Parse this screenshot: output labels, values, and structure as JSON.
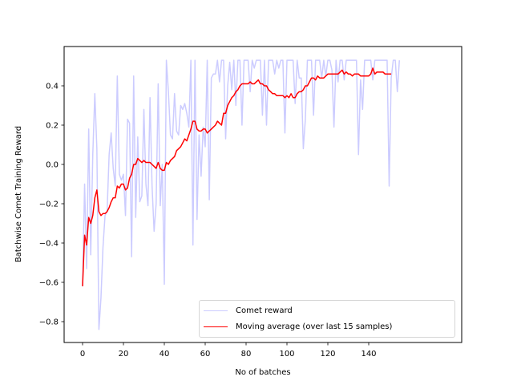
{
  "chart_data": {
    "type": "line",
    "title": "",
    "xlabel": "No of batches",
    "ylabel": "Batchwise Comet Training Reward",
    "xlim": [
      -7.5,
      156.5
    ],
    "ylim": [
      -0.905,
      0.6
    ],
    "xticks": [
      0,
      20,
      40,
      60,
      80,
      100,
      120,
      140
    ],
    "yticks": [
      -0.8,
      -0.6,
      -0.4,
      -0.2,
      0.0,
      0.2,
      0.4
    ],
    "ytick_labels": [
      "−0.8",
      "−0.6",
      "−0.4",
      "−0.2",
      "0.0",
      "0.2",
      "0.4"
    ],
    "grid": false,
    "legend_position": "lower right",
    "series": [
      {
        "name": "Comet reward",
        "color": "#ccccff",
        "values": [
          -0.62,
          -0.1,
          -0.53,
          0.18,
          -0.46,
          0.05,
          0.36,
          0.08,
          -0.84,
          -0.68,
          -0.42,
          -0.26,
          -0.24,
          0.05,
          0.16,
          -0.02,
          -0.11,
          0.45,
          -0.05,
          -0.08,
          -0.05,
          -0.26,
          0.23,
          0.21,
          -0.47,
          0.45,
          -0.27,
          0.14,
          -0.19,
          -0.16,
          0.28,
          -0.1,
          -0.21,
          0.34,
          -0.11,
          -0.34,
          -0.2,
          0.41,
          -0.21,
          0.0,
          -0.61,
          0.53,
          0.37,
          0.15,
          0.13,
          0.36,
          0.17,
          0.15,
          0.3,
          0.28,
          0.31,
          0.26,
          0.19,
          0.53,
          -0.41,
          0.53,
          -0.28,
          0.15,
          -0.06,
          0.19,
          0.09,
          0.53,
          -0.18,
          0.44,
          0.46,
          0.46,
          0.53,
          0.42,
          0.53,
          0.53,
          0.13,
          0.4,
          0.52,
          0.38,
          0.53,
          0.3,
          0.53,
          0.53,
          0.2,
          0.53,
          0.53,
          0.53,
          0.37,
          0.53,
          0.49,
          0.53,
          0.53,
          0.53,
          0.25,
          0.53,
          0.2,
          0.53,
          0.53,
          0.53,
          0.46,
          0.53,
          0.49,
          0.53,
          0.53,
          0.16,
          0.53,
          0.53,
          0.53,
          0.53,
          0.31,
          0.53,
          0.44,
          0.44,
          0.08,
          0.23,
          0.53,
          0.53,
          0.53,
          0.25,
          0.53,
          0.53,
          0.53,
          0.44,
          0.53,
          0.45,
          0.53,
          0.53,
          0.48,
          0.19,
          0.53,
          0.42,
          0.53,
          0.53,
          0.43,
          0.53,
          0.53,
          0.53,
          0.53,
          0.53,
          0.53,
          0.05,
          0.43,
          0.28,
          0.53,
          0.53,
          0.53,
          0.53,
          0.43,
          0.53,
          0.53,
          0.53,
          0.53,
          0.53,
          0.53,
          0.53,
          -0.11,
          0.44,
          0.53,
          0.53,
          0.37,
          0.53
        ]
      },
      {
        "name": "Moving average (over last 15 samples)",
        "color": "#ff0000",
        "values": [
          -0.62,
          -0.36,
          -0.41,
          -0.27,
          -0.3,
          -0.26,
          -0.17,
          -0.13,
          -0.24,
          -0.26,
          -0.25,
          -0.25,
          -0.24,
          -0.22,
          -0.19,
          -0.17,
          -0.17,
          -0.11,
          -0.12,
          -0.1,
          -0.1,
          -0.13,
          -0.12,
          -0.07,
          -0.05,
          0.0,
          0.0,
          0.03,
          0.02,
          0.01,
          0.02,
          0.01,
          0.01,
          0.01,
          0.0,
          -0.01,
          -0.02,
          0.01,
          -0.02,
          -0.03,
          -0.03,
          0.01,
          0.0,
          0.02,
          0.03,
          0.04,
          0.07,
          0.08,
          0.09,
          0.11,
          0.13,
          0.12,
          0.15,
          0.18,
          0.22,
          0.22,
          0.18,
          0.17,
          0.17,
          0.18,
          0.18,
          0.16,
          0.17,
          0.18,
          0.19,
          0.2,
          0.22,
          0.21,
          0.2,
          0.26,
          0.26,
          0.3,
          0.32,
          0.34,
          0.35,
          0.37,
          0.38,
          0.4,
          0.41,
          0.41,
          0.41,
          0.41,
          0.42,
          0.41,
          0.41,
          0.42,
          0.43,
          0.41,
          0.41,
          0.4,
          0.4,
          0.38,
          0.37,
          0.36,
          0.36,
          0.35,
          0.35,
          0.35,
          0.35,
          0.34,
          0.35,
          0.34,
          0.36,
          0.34,
          0.34,
          0.36,
          0.37,
          0.37,
          0.38,
          0.4,
          0.4,
          0.42,
          0.44,
          0.44,
          0.43,
          0.45,
          0.44,
          0.44,
          0.44,
          0.45,
          0.46,
          0.46,
          0.46,
          0.46,
          0.46,
          0.46,
          0.47,
          0.48,
          0.46,
          0.47,
          0.46,
          0.46,
          0.45,
          0.46,
          0.46,
          0.46,
          0.45,
          0.45,
          0.45,
          0.45,
          0.45,
          0.46,
          0.49,
          0.46,
          0.47,
          0.47,
          0.47,
          0.47,
          0.46,
          0.46,
          0.46,
          0.46
        ]
      }
    ]
  },
  "legend": {
    "items": [
      {
        "label": "Comet reward",
        "color": "#ccccff"
      },
      {
        "label": "Moving average (over last 15 samples)",
        "color": "#ff0000"
      }
    ]
  }
}
